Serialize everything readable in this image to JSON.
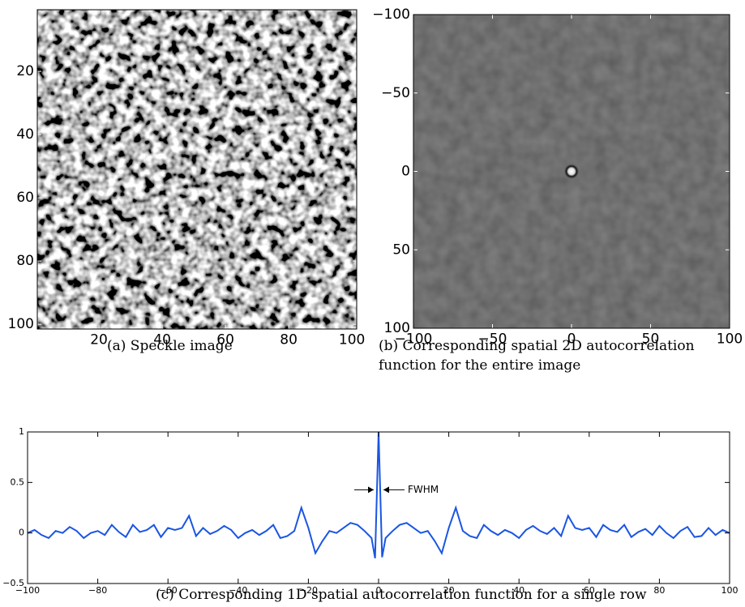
{
  "chart_data": [
    {
      "type": "image",
      "caption": "(a)  Speckle image",
      "xlim": [
        0.5,
        101.5
      ],
      "ylim": [
        101.5,
        0.5
      ],
      "xticks": [
        20,
        40,
        60,
        80,
        100
      ],
      "yticks": [
        20,
        40,
        60,
        80,
        100
      ]
    },
    {
      "type": "image",
      "caption": "(b)  Corresponding spatial 2D autocorrelation function for the entire image",
      "xlim": [
        -100,
        100
      ],
      "ylim": [
        100,
        -100
      ],
      "xticks": [
        {
          "value": -100,
          "label": "−100"
        },
        {
          "value": -50,
          "label": "−50"
        },
        0,
        50,
        100
      ],
      "yticks": [
        {
          "value": -100,
          "label": "−100"
        },
        {
          "value": -50,
          "label": "−50"
        },
        0,
        50,
        100
      ]
    },
    {
      "type": "line",
      "caption": "(c)  Corresponding 1D spatial autocorrelation function for a single row",
      "annotation": "FWHM",
      "color": "#1a55e3",
      "xlim": [
        -100,
        100
      ],
      "ylim": [
        -0.5,
        1
      ],
      "xticks": [
        {
          "value": -100,
          "label": "−100"
        },
        {
          "value": -80,
          "label": "−80"
        },
        {
          "value": -60,
          "label": "−60"
        },
        {
          "value": -40,
          "label": "−40"
        },
        {
          "value": -20,
          "label": "−20"
        },
        0,
        20,
        40,
        60,
        80,
        100
      ],
      "yticks": [
        {
          "value": -0.5,
          "label": "−0.5"
        },
        0,
        0.5,
        1
      ],
      "x": [
        -100,
        -98,
        -96,
        -94,
        -92,
        -90,
        -88,
        -86,
        -84,
        -82,
        -80,
        -78,
        -76,
        -74,
        -72,
        -70,
        -68,
        -66,
        -64,
        -62,
        -60,
        -58,
        -56,
        -54,
        -52,
        -50,
        -48,
        -46,
        -44,
        -42,
        -40,
        -38,
        -36,
        -34,
        -32,
        -30,
        -28,
        -26,
        -24,
        -22,
        -20,
        -18,
        -16,
        -14,
        -12,
        -10,
        -8,
        -6,
        -4,
        -2,
        -1,
        0,
        1,
        2,
        4,
        6,
        8,
        10,
        12,
        14,
        16,
        18,
        20,
        22,
        24,
        26,
        28,
        30,
        32,
        34,
        36,
        38,
        40,
        42,
        44,
        46,
        48,
        50,
        52,
        54,
        56,
        58,
        60,
        62,
        64,
        66,
        68,
        70,
        72,
        74,
        76,
        78,
        80,
        82,
        84,
        86,
        88,
        90,
        92,
        94,
        96,
        98,
        100
      ],
      "values": [
        0.0,
        0.03,
        -0.02,
        -0.05,
        0.02,
        0.0,
        0.06,
        0.02,
        -0.05,
        0.0,
        0.02,
        -0.02,
        0.08,
        0.01,
        -0.04,
        0.08,
        0.01,
        0.03,
        0.08,
        -0.04,
        0.05,
        0.03,
        0.05,
        0.17,
        -0.03,
        0.05,
        -0.01,
        0.02,
        0.07,
        0.03,
        -0.05,
        0.0,
        0.03,
        -0.02,
        0.02,
        0.08,
        -0.05,
        -0.03,
        0.02,
        0.25,
        0.05,
        -0.2,
        -0.08,
        0.02,
        0.0,
        0.05,
        0.1,
        0.08,
        0.02,
        -0.05,
        -0.25,
        1.0,
        -0.24,
        -0.05,
        0.02,
        0.08,
        0.1,
        0.05,
        0.0,
        0.02,
        -0.08,
        -0.2,
        0.05,
        0.25,
        0.02,
        -0.03,
        -0.05,
        0.08,
        0.02,
        -0.02,
        0.03,
        0.0,
        -0.05,
        0.03,
        0.07,
        0.02,
        -0.01,
        0.05,
        -0.03,
        0.17,
        0.05,
        0.03,
        0.05,
        -0.04,
        0.08,
        0.03,
        0.01,
        0.08,
        -0.04,
        0.01,
        0.04,
        -0.02,
        0.07,
        0.0,
        -0.05,
        0.02,
        0.06,
        -0.04,
        -0.03,
        0.05,
        -0.02,
        0.03,
        0.0
      ]
    }
  ]
}
